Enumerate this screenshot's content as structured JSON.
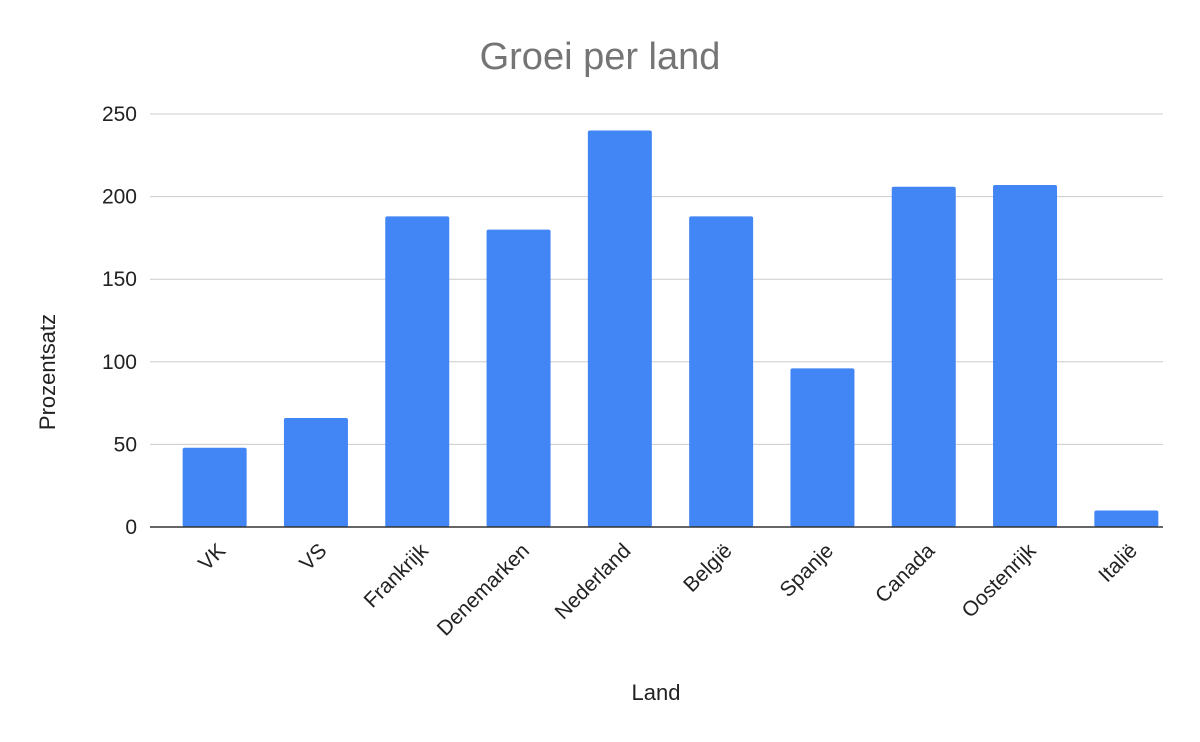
{
  "chart_data": {
    "type": "bar",
    "title": "Groei per land",
    "xlabel": "Land",
    "ylabel": "Prozentsatz",
    "categories": [
      "VK",
      "VS",
      "Frankrijk",
      "Denemarken",
      "Nederland",
      "België",
      "Spanje",
      "Canada",
      "Oostenrijk",
      "Italië"
    ],
    "values": [
      48,
      66,
      188,
      180,
      240,
      188,
      96,
      206,
      207,
      10
    ],
    "ylim": [
      0,
      250
    ],
    "yticks": [
      "0",
      "50",
      "100",
      "150",
      "200",
      "250"
    ],
    "grid": true,
    "legend": "none",
    "bar_color": "#4285f4"
  }
}
